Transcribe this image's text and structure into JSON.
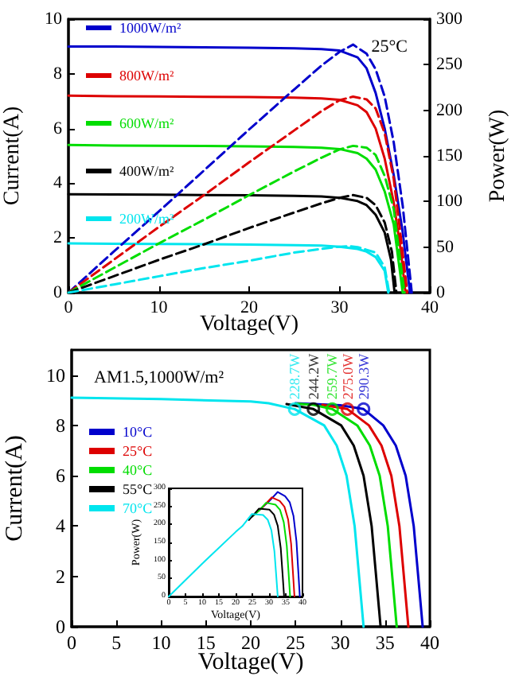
{
  "chart_data": [
    {
      "type": "line",
      "xlabel": "Voltage(V)",
      "ylabel": "Current(A)",
      "y2label": "Power(W)",
      "annotations": [
        "25°C"
      ],
      "xlim": [
        0,
        40
      ],
      "xticks": [
        0,
        10,
        20,
        30,
        40
      ],
      "ylim": [
        0,
        10
      ],
      "yticks": [
        0,
        2,
        4,
        6,
        8,
        10
      ],
      "y2lim": [
        0,
        300
      ],
      "y2ticks": [
        0,
        50,
        100,
        150,
        200,
        250,
        300
      ],
      "legend": "top left",
      "marker": "none",
      "line_style": "solid",
      "series": [
        {
          "name": "1000W/m²",
          "color": "#0000cc",
          "x": [
            0,
            5,
            10,
            15,
            20,
            25,
            28,
            30,
            32,
            33,
            34,
            35,
            36,
            37,
            37.8
          ],
          "values": [
            9.0,
            9.0,
            8.98,
            8.97,
            8.95,
            8.93,
            8.9,
            8.85,
            8.6,
            8.2,
            7.3,
            6.0,
            4.3,
            2.2,
            0
          ]
        },
        {
          "name": "800W/m²",
          "color": "#dd0000",
          "x": [
            0,
            5,
            10,
            15,
            20,
            25,
            28,
            30,
            32,
            33,
            34,
            35,
            36,
            36.8,
            37.3
          ],
          "values": [
            7.2,
            7.18,
            7.17,
            7.16,
            7.15,
            7.13,
            7.1,
            7.05,
            6.85,
            6.6,
            6.0,
            4.9,
            3.3,
            1.5,
            0
          ]
        },
        {
          "name": "600W/m²",
          "color": "#00dd00",
          "x": [
            0,
            5,
            10,
            15,
            20,
            25,
            28,
            30,
            32,
            33,
            34,
            35,
            36,
            36.6,
            37.0
          ],
          "values": [
            5.4,
            5.38,
            5.37,
            5.36,
            5.35,
            5.33,
            5.3,
            5.25,
            5.1,
            4.9,
            4.5,
            3.7,
            2.5,
            1.0,
            0
          ]
        },
        {
          "name": "400W/m²",
          "color": "#000000",
          "x": [
            0,
            5,
            10,
            15,
            20,
            25,
            28,
            30,
            32,
            33,
            34,
            35,
            35.7,
            36.1
          ],
          "values": [
            3.6,
            3.59,
            3.58,
            3.57,
            3.56,
            3.54,
            3.52,
            3.47,
            3.35,
            3.2,
            2.85,
            2.2,
            1.2,
            0
          ]
        },
        {
          "name": "200W/m²",
          "color": "#00e5ee",
          "x": [
            0,
            5,
            10,
            15,
            20,
            25,
            28,
            30,
            32,
            33,
            34,
            35,
            35.4
          ],
          "values": [
            1.8,
            1.79,
            1.78,
            1.77,
            1.76,
            1.74,
            1.72,
            1.68,
            1.6,
            1.5,
            1.3,
            0.8,
            0
          ]
        },
        {
          "axis": "y2",
          "line_style": "dashed",
          "color": "#0000cc",
          "x": [
            0,
            5,
            10,
            15,
            20,
            25,
            28,
            30,
            31.5,
            33,
            34,
            35,
            36,
            37,
            38
          ],
          "values": [
            0,
            45,
            89,
            134,
            179,
            223,
            249,
            264,
            272,
            262,
            245,
            215,
            165,
            95,
            0
          ]
        },
        {
          "axis": "y2",
          "line_style": "dashed",
          "color": "#dd0000",
          "x": [
            0,
            5,
            10,
            15,
            20,
            25,
            28,
            30,
            31.5,
            33,
            34,
            35,
            36,
            36.8,
            37.5
          ],
          "values": [
            0,
            36,
            72,
            107,
            143,
            178,
            199,
            211,
            215,
            212,
            202,
            175,
            125,
            60,
            0
          ]
        },
        {
          "axis": "y2",
          "line_style": "dashed",
          "color": "#00dd00",
          "x": [
            0,
            5,
            10,
            15,
            20,
            25,
            28,
            30,
            31.5,
            33,
            34,
            35,
            36,
            36.6,
            37.2
          ],
          "values": [
            0,
            27,
            54,
            80,
            107,
            133,
            148,
            157,
            161,
            159,
            151,
            128,
            92,
            45,
            0
          ]
        },
        {
          "axis": "y2",
          "line_style": "dashed",
          "color": "#000000",
          "x": [
            0,
            5,
            10,
            15,
            20,
            25,
            28,
            30,
            31.5,
            33,
            34,
            35,
            35.8,
            36.3
          ],
          "values": [
            0,
            18,
            36,
            53,
            71,
            88,
            98,
            104,
            107,
            104,
            96,
            77,
            45,
            0
          ]
        },
        {
          "axis": "y2",
          "line_style": "dashed",
          "color": "#00e5ee",
          "x": [
            0,
            5,
            10,
            15,
            20,
            25,
            28,
            29.5,
            31,
            32,
            33,
            34,
            35,
            35.5
          ],
          "values": [
            0,
            9,
            18,
            27,
            35,
            44,
            48,
            50,
            51,
            50,
            47,
            44,
            28,
            0
          ]
        }
      ]
    },
    {
      "type": "line",
      "xlabel": "Voltage(V)",
      "ylabel": "Current(A)",
      "annotations": [
        "AM1.5,1000W/m²",
        {
          "text": "228.7W",
          "x": 24.9,
          "y": 8.65
        },
        {
          "text": "244.2W",
          "x": 27.0,
          "y": 8.65
        },
        {
          "text": "259.7W",
          "x": 29.1,
          "y": 8.65
        },
        {
          "text": "275.0W",
          "x": 30.8,
          "y": 8.65
        },
        {
          "text": "290.3W",
          "x": 32.6,
          "y": 8.65
        }
      ],
      "xlim": [
        0,
        40
      ],
      "xticks": [
        0,
        5,
        10,
        15,
        20,
        25,
        30,
        35,
        40
      ],
      "ylim": [
        0,
        11
      ],
      "yticks": [
        0,
        2,
        4,
        6,
        8,
        10
      ],
      "legend": "top left",
      "marker": "none",
      "line_style": "solid",
      "series": [
        {
          "name": "10°C",
          "color": "#0000cc",
          "x": [
            25,
            30,
            32.6,
            34.8,
            36.2,
            37.3,
            38.2,
            38.7,
            39.2
          ],
          "values": [
            8.88,
            8.8,
            8.65,
            8.0,
            7.2,
            6.0,
            4.0,
            2.0,
            0
          ]
        },
        {
          "name": "25°C",
          "color": "#dd0000",
          "x": [
            28,
            30.8,
            33.2,
            34.6,
            35.7,
            36.6,
            37.1,
            37.6
          ],
          "values": [
            8.82,
            8.65,
            8.0,
            7.2,
            6.0,
            4.0,
            2.0,
            0
          ]
        },
        {
          "name": "40°C",
          "color": "#00dd00",
          "x": [
            25,
            27,
            29.1,
            31.9,
            33.3,
            34.4,
            35.3,
            35.8,
            36.3
          ],
          "values": [
            8.87,
            8.82,
            8.65,
            8.0,
            7.2,
            6.0,
            4.0,
            2.0,
            0
          ]
        },
        {
          "name": "55°C",
          "color": "#000000",
          "x": [
            24,
            27.0,
            30.1,
            31.5,
            32.6,
            33.5,
            34.0,
            34.5
          ],
          "values": [
            8.85,
            8.65,
            8.0,
            7.2,
            6.0,
            4.0,
            2.0,
            0
          ]
        },
        {
          "name": "70°C",
          "color": "#00e5ee",
          "x": [
            0,
            10,
            20,
            22,
            24.9,
            28.2,
            29.6,
            30.7,
            31.6,
            32.1,
            32.6
          ],
          "values": [
            9.1,
            9.05,
            8.95,
            8.88,
            8.65,
            8.0,
            7.2,
            6.0,
            4.0,
            2.0,
            0
          ]
        },
        {
          "type": "scatter",
          "marker": "circle",
          "x": [
            24.9,
            27.0,
            29.1,
            30.8,
            32.6
          ],
          "values": [
            8.65,
            8.65,
            8.65,
            8.65,
            8.65
          ],
          "colors": [
            "#00e5ee",
            "#000000",
            "#00dd00",
            "#dd0000",
            "#0000cc"
          ]
        }
      ]
    },
    {
      "type": "line",
      "xlabel": "Voltage(V)",
      "ylabel": "Power(W)",
      "xlim": [
        0,
        40
      ],
      "xticks": [
        0,
        5,
        10,
        15,
        20,
        25,
        30,
        35,
        40
      ],
      "ylim": [
        0,
        300
      ],
      "yticks": [
        0,
        50,
        100,
        150,
        200,
        250,
        300
      ],
      "marker": "none",
      "line_style": "solid",
      "series": [
        {
          "color": "#0000cc",
          "x": [
            25,
            30,
            32.6,
            34.8,
            36.2,
            37.3,
            38.2,
            38.7,
            39.2
          ],
          "values": [
            222,
            264,
            290,
            278,
            261,
            224,
            153,
            77,
            0
          ]
        },
        {
          "color": "#dd0000",
          "x": [
            25,
            28,
            30.8,
            33.2,
            34.6,
            35.7,
            36.6,
            37.1,
            37.6
          ],
          "values": [
            222,
            247,
            275,
            265,
            249,
            214,
            146,
            74,
            0
          ]
        },
        {
          "color": "#00dd00",
          "x": [
            25,
            27,
            29.1,
            31.9,
            33.3,
            34.4,
            35.3,
            35.8,
            36.3
          ],
          "values": [
            222,
            238,
            260,
            255,
            240,
            206,
            141,
            72,
            0
          ]
        },
        {
          "color": "#000000",
          "x": [
            24,
            27.0,
            30.1,
            31.5,
            32.6,
            33.5,
            34.0,
            34.5
          ],
          "values": [
            212,
            244,
            241,
            227,
            196,
            134,
            68,
            0
          ]
        },
        {
          "color": "#00e5ee",
          "x": [
            0,
            10,
            20,
            22,
            24.9,
            28.2,
            29.6,
            30.7,
            31.6,
            32.1,
            32.6
          ],
          "values": [
            0,
            91,
            179,
            195,
            229,
            226,
            213,
            184,
            126,
            64,
            0
          ]
        }
      ]
    }
  ]
}
